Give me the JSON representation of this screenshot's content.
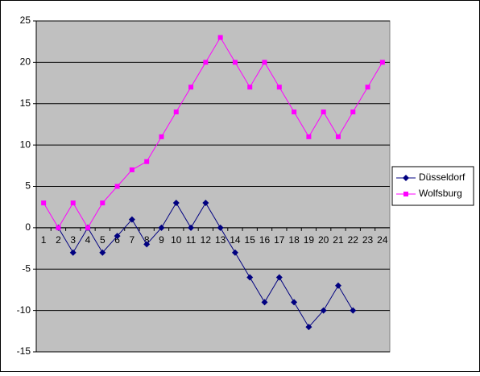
{
  "chart_data": {
    "type": "line",
    "categories": [
      "1",
      "2",
      "3",
      "4",
      "5",
      "6",
      "7",
      "8",
      "9",
      "10",
      "11",
      "12",
      "13",
      "14",
      "15",
      "16",
      "17",
      "18",
      "19",
      "20",
      "21",
      "22",
      "23",
      "24"
    ],
    "series": [
      {
        "name": "Düsseldorf",
        "color": "#000080",
        "marker": "diamond",
        "values": [
          null,
          0,
          -3,
          0,
          -3,
          -1,
          1,
          -2,
          0,
          3,
          0,
          3,
          0,
          -3,
          -6,
          -9,
          -6,
          -9,
          -12,
          -10,
          -7,
          -10,
          null,
          null
        ]
      },
      {
        "name": "Wolfsburg",
        "color": "#ff00ff",
        "marker": "square",
        "values": [
          3,
          0,
          3,
          0,
          3,
          5,
          7,
          8,
          11,
          14,
          17,
          20,
          23,
          20,
          17,
          20,
          17,
          14,
          11,
          14,
          11,
          14,
          17,
          20
        ]
      }
    ],
    "ylim": [
      -15,
      25
    ],
    "yticks": [
      -15,
      -10,
      -5,
      0,
      5,
      10,
      15,
      20,
      25
    ],
    "grid": true,
    "legend": "right"
  }
}
